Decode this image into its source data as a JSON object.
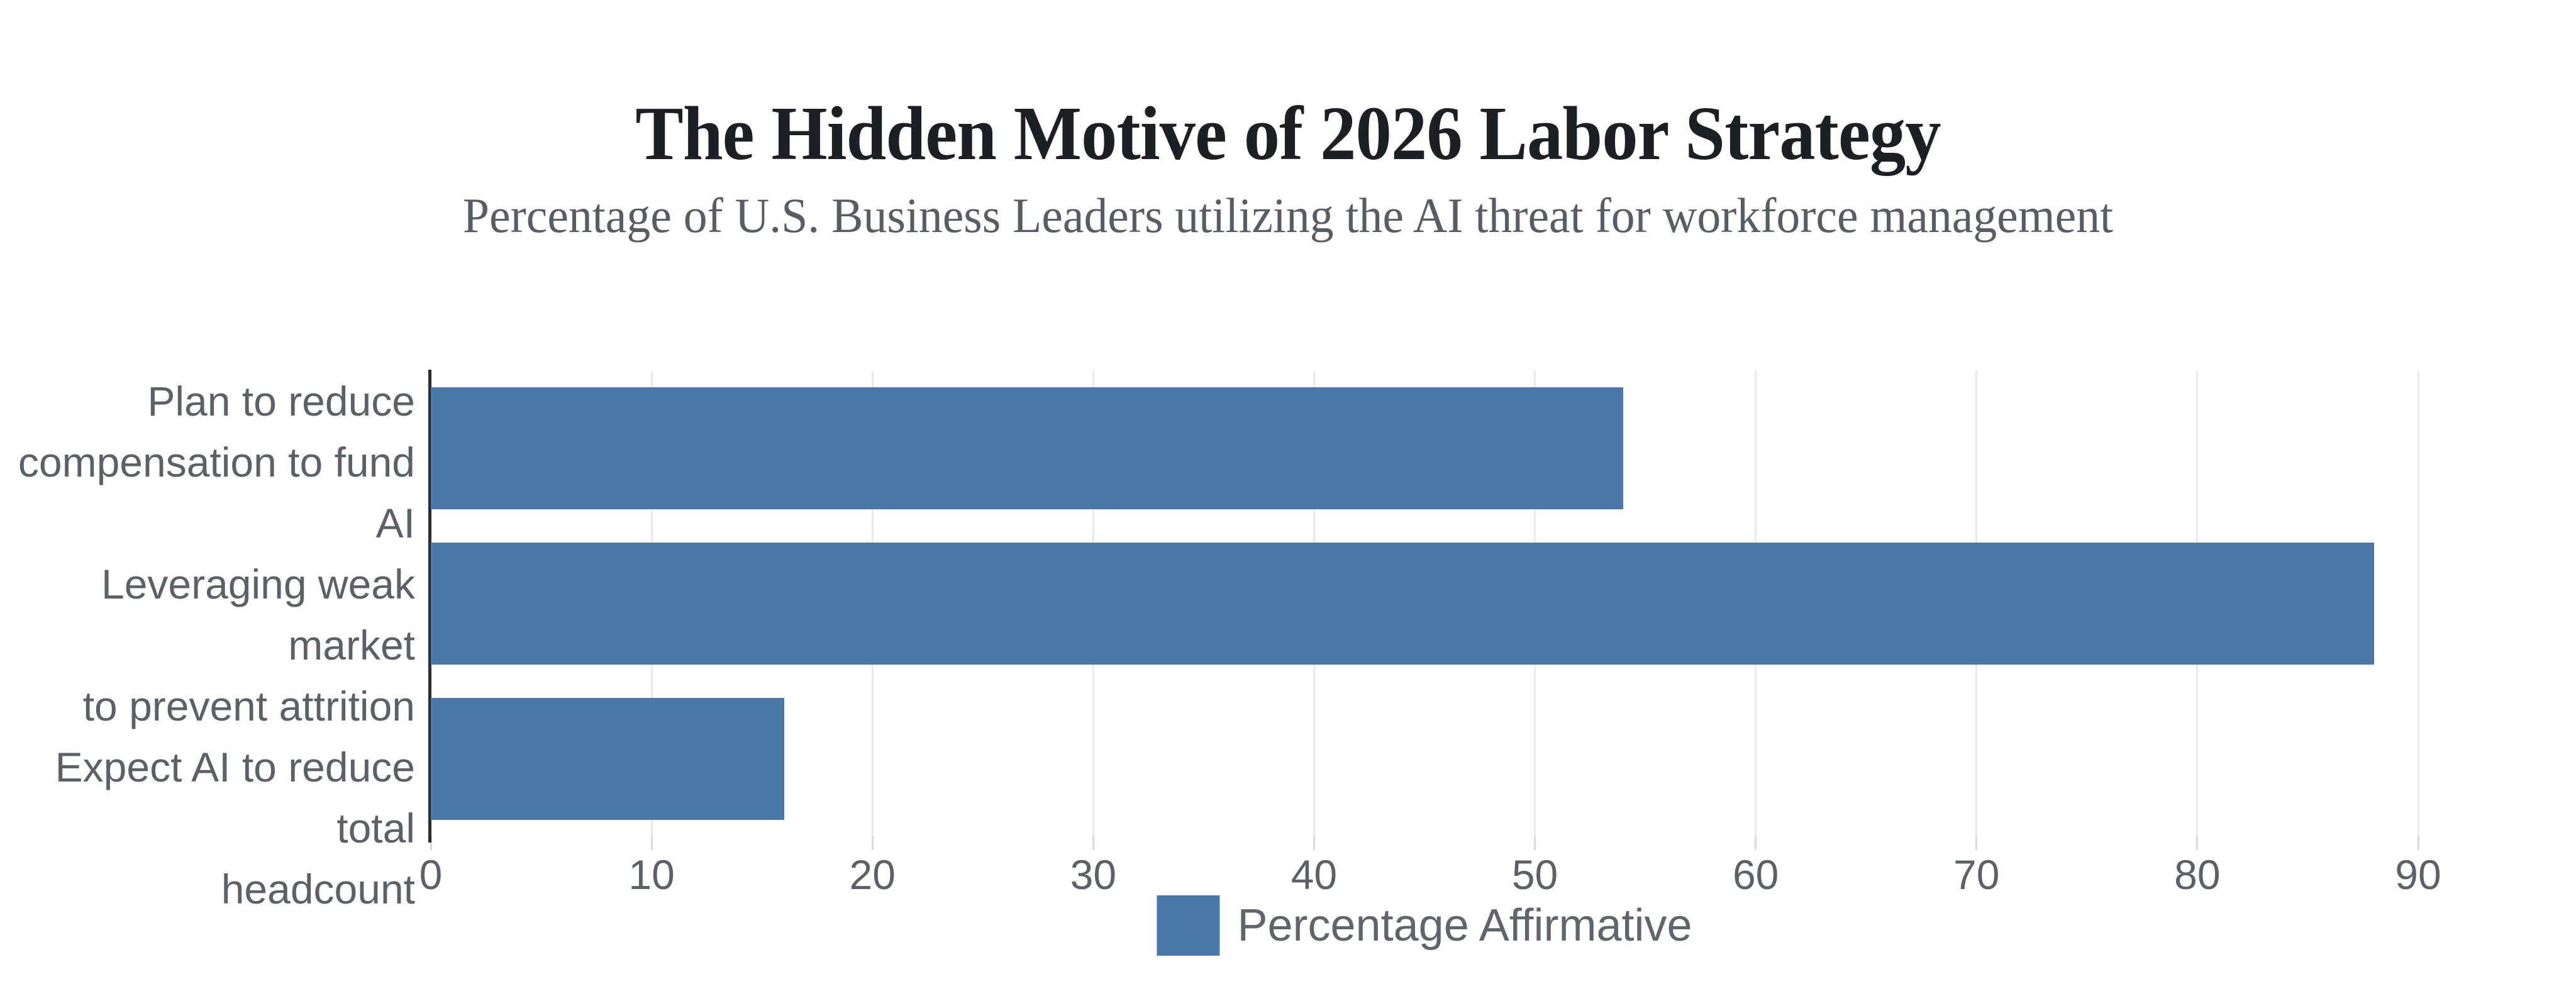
{
  "header": {
    "title": "The Hidden Motive of 2026 Labor Strategy",
    "subtitle": "Percentage of U.S. Business Leaders utilizing the AI threat for workforce management"
  },
  "legend": {
    "label": "Percentage Affirmative"
  },
  "colors": {
    "bar": "#4c78a8",
    "gridline": "#e8eaee",
    "axis_domain": "#2b2e33",
    "tick_mark": "#d8dbdf",
    "label_gray": "#5c6167",
    "title_color": "#1c1f24",
    "subtitle_color": "#585d64"
  },
  "chart_data": {
    "type": "bar",
    "orientation": "horizontal",
    "title": "The Hidden Motive of 2026 Labor Strategy",
    "subtitle": "Percentage of U.S. Business Leaders utilizing the AI threat for workforce management",
    "categories": [
      "Plan to reduce\ncompensation to fund AI",
      "Leveraging weak market\nto prevent attrition",
      "Expect AI to reduce total\nheadcount"
    ],
    "values": [
      54,
      88,
      16
    ],
    "series_name": "Percentage Affirmative",
    "xlabel": "",
    "ylabel": "",
    "xlim": [
      0,
      90
    ],
    "x_ticks": [
      0,
      10,
      20,
      30,
      40,
      50,
      60,
      70,
      80,
      90
    ],
    "grid": "vertical-light",
    "legend_position": "bottom-center"
  }
}
